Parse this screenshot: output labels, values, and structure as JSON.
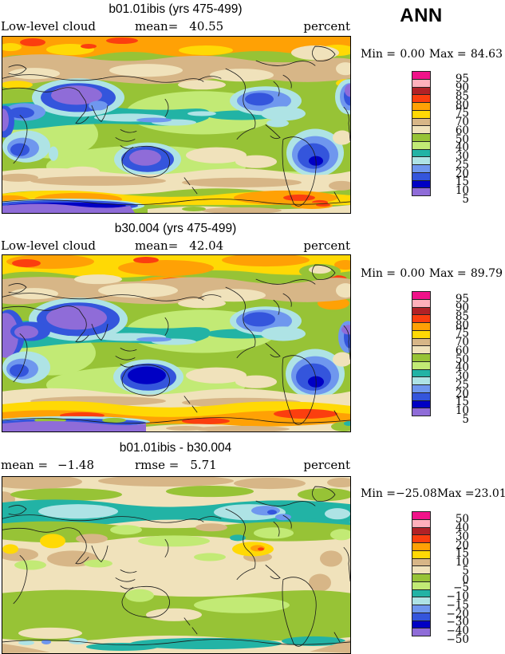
{
  "figure": {
    "label": "ANN"
  },
  "palette": {
    "colors": [
      "#F01289",
      "#FFB0BC",
      "#B22126",
      "#FB3E0F",
      "#FFA105",
      "#FFD905",
      "#D7B687",
      "#F0E2BB",
      "#97C336",
      "#C2EA75",
      "#22B3A5",
      "#AEE3E5",
      "#6F97EE",
      "#3455DC",
      "#0000C4",
      "#8F6CD8"
    ],
    "coastline": "#1a1a1a",
    "map_border": "#000000"
  },
  "panels": [
    {
      "title": "b01.01ibis (yrs 475-499)",
      "stats": {
        "left_label": "Low-level cloud",
        "left_value": "",
        "mid_label": "mean=",
        "mid_value": "40.55",
        "units": "percent"
      },
      "minmax": {
        "min_label": "Min =",
        "min_value": "0.00",
        "max_label": "Max =",
        "max_value": "84.63"
      },
      "legend": {
        "labels": [
          "95",
          "90",
          "85",
          "80",
          "75",
          "70",
          "60",
          "50",
          "40",
          "30",
          "25",
          "20",
          "15",
          "10",
          "5"
        ]
      }
    },
    {
      "title": "b30.004 (yrs 475-499)",
      "stats": {
        "left_label": "Low-level cloud",
        "left_value": "",
        "mid_label": "mean=",
        "mid_value": "42.04",
        "units": "percent"
      },
      "minmax": {
        "min_label": "Min =",
        "min_value": "0.00",
        "max_label": "Max =",
        "max_value": "89.79"
      },
      "legend": {
        "labels": [
          "95",
          "90",
          "85",
          "80",
          "75",
          "70",
          "60",
          "50",
          "40",
          "30",
          "25",
          "20",
          "15",
          "10",
          "5"
        ]
      }
    },
    {
      "title": "b01.01ibis - b30.004",
      "stats": {
        "left_label": "mean =",
        "left_value": "−1.48",
        "mid_label": "rmse =",
        "mid_value": "5.71",
        "units": "percent"
      },
      "minmax": {
        "min_label": "Min =",
        "min_value": "−25.08",
        "max_label": "Max =",
        "max_value": "23.01"
      },
      "legend": {
        "labels": [
          "50",
          "40",
          "30",
          "20",
          "15",
          "10",
          "5",
          "0",
          "−5",
          "−10",
          "−15",
          "−20",
          "−30",
          "−40",
          "−50"
        ]
      }
    }
  ]
}
